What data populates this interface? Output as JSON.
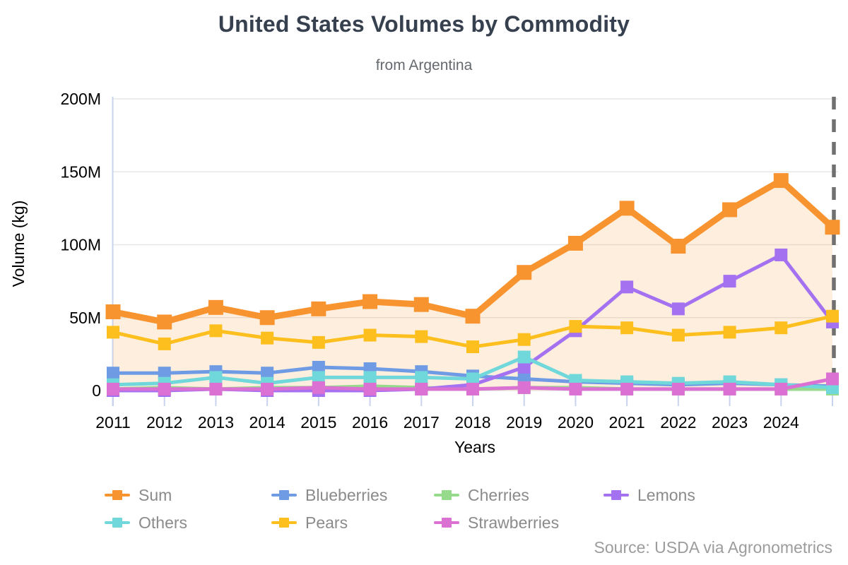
{
  "source": "Source: USDA via Agronometrics",
  "chart_data": {
    "type": "line",
    "title": "United States Volumes by Commodity",
    "subtitle": "from Argentina",
    "xlabel": "Years",
    "ylabel": "Volume (kg)",
    "x": [
      2011,
      2012,
      2013,
      2014,
      2015,
      2016,
      2017,
      2018,
      2019,
      2020,
      2021,
      2022,
      2023,
      2024,
      2025
    ],
    "xtick_labels": [
      "2011",
      "2012",
      "2013",
      "2014",
      "2015",
      "2016",
      "2017",
      "2018",
      "2019",
      "2020",
      "2021",
      "2022",
      "2023",
      "2024"
    ],
    "yticks": [
      "0",
      "50M",
      "100M",
      "150M",
      "200M"
    ],
    "ytick_values": [
      0,
      50,
      100,
      150,
      200
    ],
    "ylim": [
      0,
      200
    ],
    "values_unit": "millions of kg",
    "grid": "horizontal",
    "legend_position": "bottom",
    "annotation": {
      "type": "dashed-vertical-line",
      "position": "last-point",
      "color": "#707070"
    },
    "series": [
      {
        "name": "Sum",
        "color": "#F8942F",
        "area": true,
        "values": [
          54,
          47,
          57,
          50,
          56,
          61,
          59,
          51,
          81,
          101,
          125,
          99,
          124,
          144,
          112
        ]
      },
      {
        "name": "Blueberries",
        "color": "#6E9BE4",
        "area": false,
        "values": [
          12,
          12,
          13,
          12,
          16,
          15,
          13,
          10,
          8,
          6,
          5,
          4,
          5,
          4,
          3
        ]
      },
      {
        "name": "Cherries",
        "color": "#96DA8C",
        "area": false,
        "values": [
          1,
          2,
          1,
          2,
          2,
          3,
          2,
          1,
          2,
          2,
          1,
          1,
          1,
          1,
          1
        ]
      },
      {
        "name": "Lemons",
        "color": "#A471F1",
        "area": false,
        "values": [
          0,
          0,
          1,
          0,
          0,
          0,
          1,
          4,
          16,
          41,
          71,
          56,
          75,
          93,
          47
        ]
      },
      {
        "name": "Others",
        "color": "#70D8DA",
        "area": false,
        "values": [
          4,
          5,
          9,
          5,
          9,
          9,
          9,
          8,
          23,
          7,
          6,
          5,
          6,
          4,
          2
        ]
      },
      {
        "name": "Pears",
        "color": "#FCBF1E",
        "area": false,
        "values": [
          40,
          32,
          41,
          36,
          33,
          38,
          37,
          30,
          35,
          44,
          43,
          38,
          40,
          43,
          51
        ]
      },
      {
        "name": "Strawberries",
        "color": "#DB71D2",
        "area": false,
        "values": [
          1,
          1,
          1,
          1,
          2,
          1,
          1,
          1,
          2,
          1,
          1,
          1,
          1,
          1,
          8
        ]
      }
    ]
  }
}
